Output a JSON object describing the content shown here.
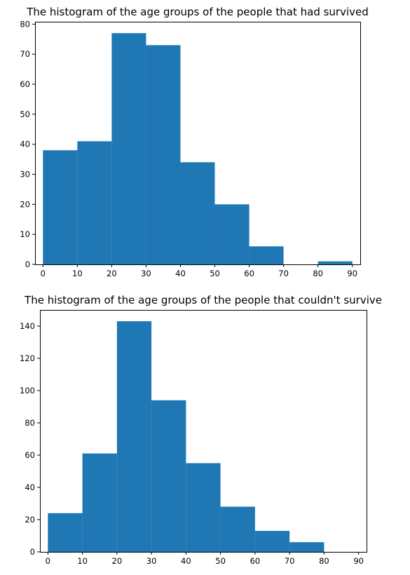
{
  "chart_data": [
    {
      "type": "bar",
      "title": "The histogram of the age groups of the people that had survived",
      "xlabel": "",
      "ylabel": "",
      "bin_edges": [
        0,
        10,
        20,
        30,
        40,
        50,
        60,
        70,
        80,
        90
      ],
      "bin_starts": [
        0,
        10,
        20,
        30,
        40,
        50,
        60,
        70,
        80
      ],
      "values": [
        38,
        41,
        77,
        73,
        34,
        20,
        6,
        0,
        1
      ],
      "xlim": [
        -2.3,
        92.3
      ],
      "ylim": [
        0,
        80.8
      ],
      "xticks": [
        "0",
        "10",
        "20",
        "30",
        "40",
        "50",
        "60",
        "70",
        "80",
        "90"
      ],
      "yticks": [
        "0",
        "10",
        "20",
        "30",
        "40",
        "50",
        "60",
        "70",
        "80"
      ],
      "color": "#1f77b4",
      "grid": false,
      "legend": "none"
    },
    {
      "type": "bar",
      "title": "The histogram of the age groups of the people that couldn't survive",
      "xlabel": "",
      "ylabel": "",
      "bin_edges": [
        0,
        10,
        20,
        30,
        40,
        50,
        60,
        70,
        80,
        90
      ],
      "bin_starts": [
        0,
        10,
        20,
        30,
        40,
        50,
        60,
        70,
        80
      ],
      "values": [
        24,
        61,
        143,
        94,
        55,
        28,
        13,
        6,
        0
      ],
      "xlim": [
        -2.3,
        92.3
      ],
      "ylim": [
        0,
        150
      ],
      "xticks": [
        "0",
        "10",
        "20",
        "30",
        "40",
        "50",
        "60",
        "70",
        "80",
        "90"
      ],
      "yticks": [
        "0",
        "20",
        "40",
        "60",
        "80",
        "100",
        "120",
        "140"
      ],
      "color": "#1f77b4",
      "grid": false,
      "legend": "none"
    }
  ]
}
